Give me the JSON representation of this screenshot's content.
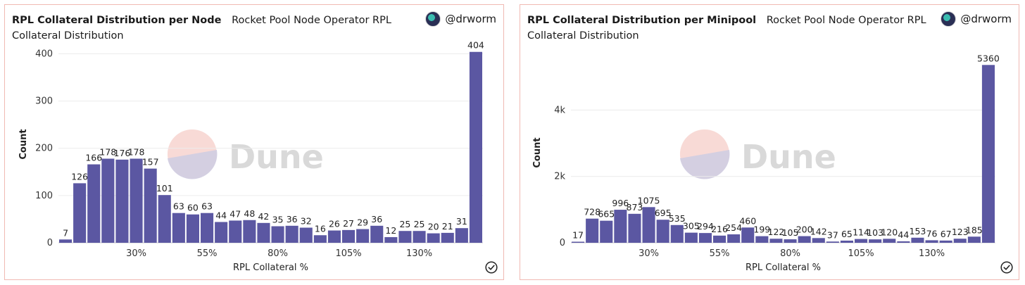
{
  "panels": [
    {
      "title": "RPL Collateral Distribution per Node",
      "subtitle": "Rocket Pool Node Operator RPL Collateral Distribution",
      "author": "@drworm",
      "watermark": "Dune"
    },
    {
      "title": "RPL Collateral Distribution per Minipool",
      "subtitle": "Rocket Pool Node Operator RPL Collateral Distribution",
      "author": "@drworm",
      "watermark": "Dune"
    }
  ],
  "colors": {
    "bar": "#5b57a2",
    "grid": "#ececec",
    "border": "#f0b9b3"
  },
  "chart_data": [
    {
      "type": "bar",
      "title": "RPL Collateral Distribution per Node",
      "xlabel": "RPL Collateral %",
      "ylabel": "Count",
      "ylim": [
        0,
        420
      ],
      "yticks": [
        0,
        100,
        200,
        300,
        400
      ],
      "ytick_labels": [
        "0",
        "100",
        "200",
        "300",
        "400"
      ],
      "xtick_labels": [
        {
          "index": 5,
          "label": "30%"
        },
        {
          "index": 10,
          "label": "55%"
        },
        {
          "index": 15,
          "label": "80%"
        },
        {
          "index": 20,
          "label": "105%"
        },
        {
          "index": 25,
          "label": "130%"
        }
      ],
      "values": [
        7,
        126,
        166,
        178,
        176,
        178,
        157,
        101,
        63,
        60,
        63,
        44,
        47,
        48,
        42,
        35,
        36,
        32,
        16,
        26,
        27,
        29,
        36,
        12,
        25,
        25,
        20,
        21,
        31,
        404
      ],
      "grid": true
    },
    {
      "type": "bar",
      "title": "RPL Collateral Distribution per Minipool",
      "xlabel": "RPL Collateral %",
      "ylabel": "Count",
      "ylim": [
        0,
        5600
      ],
      "yticks": [
        0,
        2000,
        4000
      ],
      "ytick_labels": [
        "0",
        "2k",
        "4k"
      ],
      "xtick_labels": [
        {
          "index": 5,
          "label": "30%"
        },
        {
          "index": 10,
          "label": "55%"
        },
        {
          "index": 15,
          "label": "80%"
        },
        {
          "index": 20,
          "label": "105%"
        },
        {
          "index": 25,
          "label": "130%"
        }
      ],
      "values": [
        17,
        728,
        665,
        996,
        873,
        1075,
        695,
        535,
        305,
        294,
        216,
        254,
        460,
        199,
        122,
        105,
        200,
        142,
        37,
        65,
        114,
        103,
        120,
        44,
        153,
        76,
        67,
        123,
        185,
        5360
      ],
      "grid": true
    }
  ]
}
